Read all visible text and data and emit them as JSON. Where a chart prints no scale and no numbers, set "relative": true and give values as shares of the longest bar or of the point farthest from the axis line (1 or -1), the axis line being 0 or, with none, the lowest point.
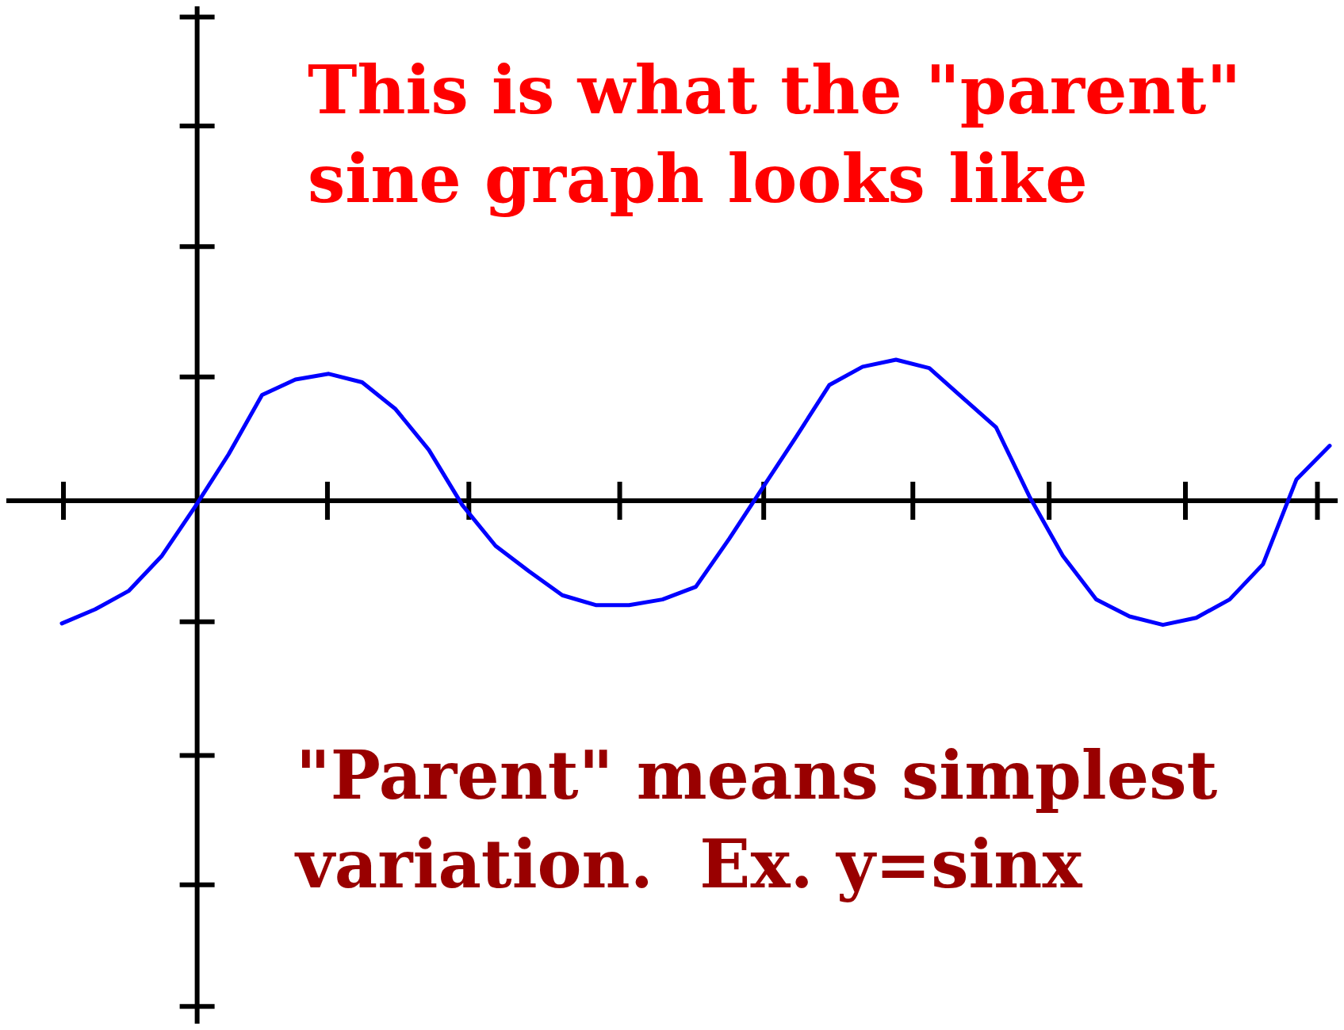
{
  "chart_data": {
    "type": "line",
    "relative": true,
    "categories": [
      null,
      null,
      null,
      null,
      null,
      null,
      null,
      null,
      null,
      null,
      null,
      null,
      null,
      null,
      null,
      null,
      null,
      null,
      null,
      null,
      null,
      null,
      null,
      null,
      null,
      null,
      null,
      null,
      null,
      null,
      null,
      null,
      null,
      null,
      null,
      null,
      null,
      null,
      null
    ],
    "series": [
      {
        "color": "#0000ff",
        "values": [
          -0.87,
          -0.77,
          -0.64,
          -0.39,
          -0.04,
          0.33,
          0.75,
          0.86,
          0.9,
          0.84,
          0.65,
          0.36,
          -0.03,
          -0.32,
          -0.5,
          -0.67,
          -0.74,
          -0.74,
          -0.7,
          -0.61,
          -0.27,
          0.09,
          0.45,
          0.82,
          0.95,
          1,
          0.94,
          0.73,
          0.52,
          0.03,
          -0.39,
          -0.7,
          -0.82,
          -0.88,
          -0.83,
          -0.7,
          -0.45,
          0.15,
          0.39
        ]
      }
    ],
    "annotations": [
      "This is what the \"parent\" sine graph looks like",
      "\"Parent\" means simplest variation.  Ex. y=sinx"
    ]
  }
}
